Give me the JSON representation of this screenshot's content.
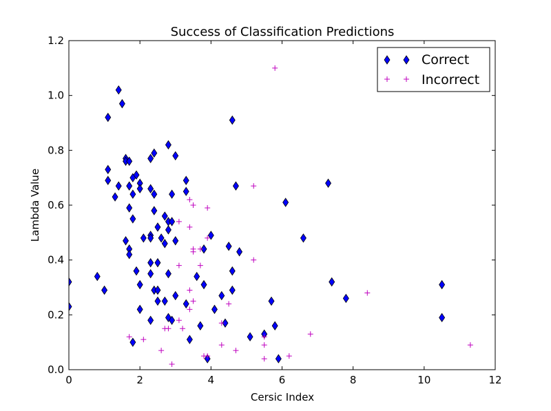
{
  "chart_data": {
    "type": "scatter",
    "title": "Success of Classification Predictions",
    "xlabel": "Cersic Index",
    "ylabel": "Lambda Value",
    "xlim": [
      0,
      12
    ],
    "ylim": [
      0,
      1.2
    ],
    "xticks": [
      "0",
      "2",
      "4",
      "6",
      "8",
      "10",
      "12"
    ],
    "yticks": [
      "0.0",
      "0.2",
      "0.4",
      "0.6",
      "0.8",
      "1.0",
      "1.2"
    ],
    "grid": false,
    "legend_position": "top-right",
    "series": [
      {
        "name": "Correct",
        "marker": "diamond",
        "color": "#0000ff",
        "points": [
          [
            0.0,
            0.32
          ],
          [
            0.0,
            0.23
          ],
          [
            0.8,
            0.34
          ],
          [
            1.0,
            0.29
          ],
          [
            1.1,
            0.92
          ],
          [
            1.1,
            0.73
          ],
          [
            1.1,
            0.69
          ],
          [
            1.3,
            0.63
          ],
          [
            1.4,
            1.02
          ],
          [
            1.4,
            0.67
          ],
          [
            1.5,
            0.97
          ],
          [
            1.6,
            0.77
          ],
          [
            1.6,
            0.76
          ],
          [
            1.7,
            0.76
          ],
          [
            1.6,
            0.47
          ],
          [
            1.7,
            0.67
          ],
          [
            1.7,
            0.59
          ],
          [
            1.7,
            0.44
          ],
          [
            1.7,
            0.42
          ],
          [
            1.8,
            0.7
          ],
          [
            1.8,
            0.64
          ],
          [
            1.8,
            0.55
          ],
          [
            1.8,
            0.1
          ],
          [
            1.9,
            0.71
          ],
          [
            1.9,
            0.36
          ],
          [
            2.0,
            0.68
          ],
          [
            2.0,
            0.66
          ],
          [
            2.0,
            0.31
          ],
          [
            2.0,
            0.22
          ],
          [
            2.1,
            0.48
          ],
          [
            2.3,
            0.77
          ],
          [
            2.3,
            0.66
          ],
          [
            2.3,
            0.49
          ],
          [
            2.3,
            0.48
          ],
          [
            2.3,
            0.39
          ],
          [
            2.3,
            0.35
          ],
          [
            2.3,
            0.18
          ],
          [
            2.4,
            0.79
          ],
          [
            2.4,
            0.64
          ],
          [
            2.4,
            0.58
          ],
          [
            2.4,
            0.29
          ],
          [
            2.5,
            0.52
          ],
          [
            2.5,
            0.39
          ],
          [
            2.5,
            0.29
          ],
          [
            2.5,
            0.25
          ],
          [
            2.6,
            0.48
          ],
          [
            2.7,
            0.56
          ],
          [
            2.7,
            0.46
          ],
          [
            2.7,
            0.25
          ],
          [
            2.8,
            0.82
          ],
          [
            2.8,
            0.54
          ],
          [
            2.8,
            0.51
          ],
          [
            2.8,
            0.35
          ],
          [
            2.8,
            0.19
          ],
          [
            2.9,
            0.64
          ],
          [
            2.9,
            0.54
          ],
          [
            2.9,
            0.18
          ],
          [
            3.0,
            0.78
          ],
          [
            3.0,
            0.47
          ],
          [
            3.0,
            0.27
          ],
          [
            3.3,
            0.69
          ],
          [
            3.3,
            0.65
          ],
          [
            3.3,
            0.24
          ],
          [
            3.4,
            0.11
          ],
          [
            3.6,
            0.34
          ],
          [
            3.7,
            0.16
          ],
          [
            3.8,
            0.44
          ],
          [
            3.8,
            0.31
          ],
          [
            3.9,
            0.04
          ],
          [
            4.0,
            0.49
          ],
          [
            4.1,
            0.22
          ],
          [
            4.3,
            0.27
          ],
          [
            4.4,
            0.17
          ],
          [
            4.5,
            0.45
          ],
          [
            4.6,
            0.91
          ],
          [
            4.6,
            0.36
          ],
          [
            4.6,
            0.29
          ],
          [
            4.7,
            0.67
          ],
          [
            4.8,
            0.43
          ],
          [
            5.1,
            0.12
          ],
          [
            5.5,
            0.13
          ],
          [
            5.7,
            0.25
          ],
          [
            5.8,
            0.16
          ],
          [
            5.9,
            0.04
          ],
          [
            6.1,
            0.61
          ],
          [
            6.6,
            0.48
          ],
          [
            7.3,
            0.68
          ],
          [
            7.4,
            0.32
          ],
          [
            7.8,
            0.26
          ],
          [
            10.5,
            0.31
          ],
          [
            10.5,
            0.19
          ]
        ]
      },
      {
        "name": "Incorrect",
        "marker": "plus",
        "color": "#bf00bf",
        "points": [
          [
            1.7,
            0.12
          ],
          [
            2.1,
            0.11
          ],
          [
            2.6,
            0.07
          ],
          [
            2.7,
            0.15
          ],
          [
            2.8,
            0.15
          ],
          [
            2.9,
            0.02
          ],
          [
            3.1,
            0.54
          ],
          [
            3.1,
            0.38
          ],
          [
            3.1,
            0.18
          ],
          [
            3.2,
            0.15
          ],
          [
            3.4,
            0.62
          ],
          [
            3.4,
            0.52
          ],
          [
            3.4,
            0.29
          ],
          [
            3.4,
            0.22
          ],
          [
            3.5,
            0.6
          ],
          [
            3.5,
            0.44
          ],
          [
            3.5,
            0.43
          ],
          [
            3.5,
            0.25
          ],
          [
            3.7,
            0.44
          ],
          [
            3.7,
            0.38
          ],
          [
            3.8,
            0.05
          ],
          [
            3.9,
            0.59
          ],
          [
            3.9,
            0.48
          ],
          [
            3.9,
            0.05
          ],
          [
            4.3,
            0.17
          ],
          [
            4.3,
            0.09
          ],
          [
            4.5,
            0.24
          ],
          [
            4.7,
            0.07
          ],
          [
            5.2,
            0.67
          ],
          [
            5.2,
            0.4
          ],
          [
            5.5,
            0.12
          ],
          [
            5.5,
            0.09
          ],
          [
            5.5,
            0.04
          ],
          [
            5.8,
            1.1
          ],
          [
            6.2,
            0.05
          ],
          [
            6.8,
            0.13
          ],
          [
            8.4,
            0.28
          ],
          [
            11.3,
            0.09
          ]
        ]
      }
    ]
  }
}
